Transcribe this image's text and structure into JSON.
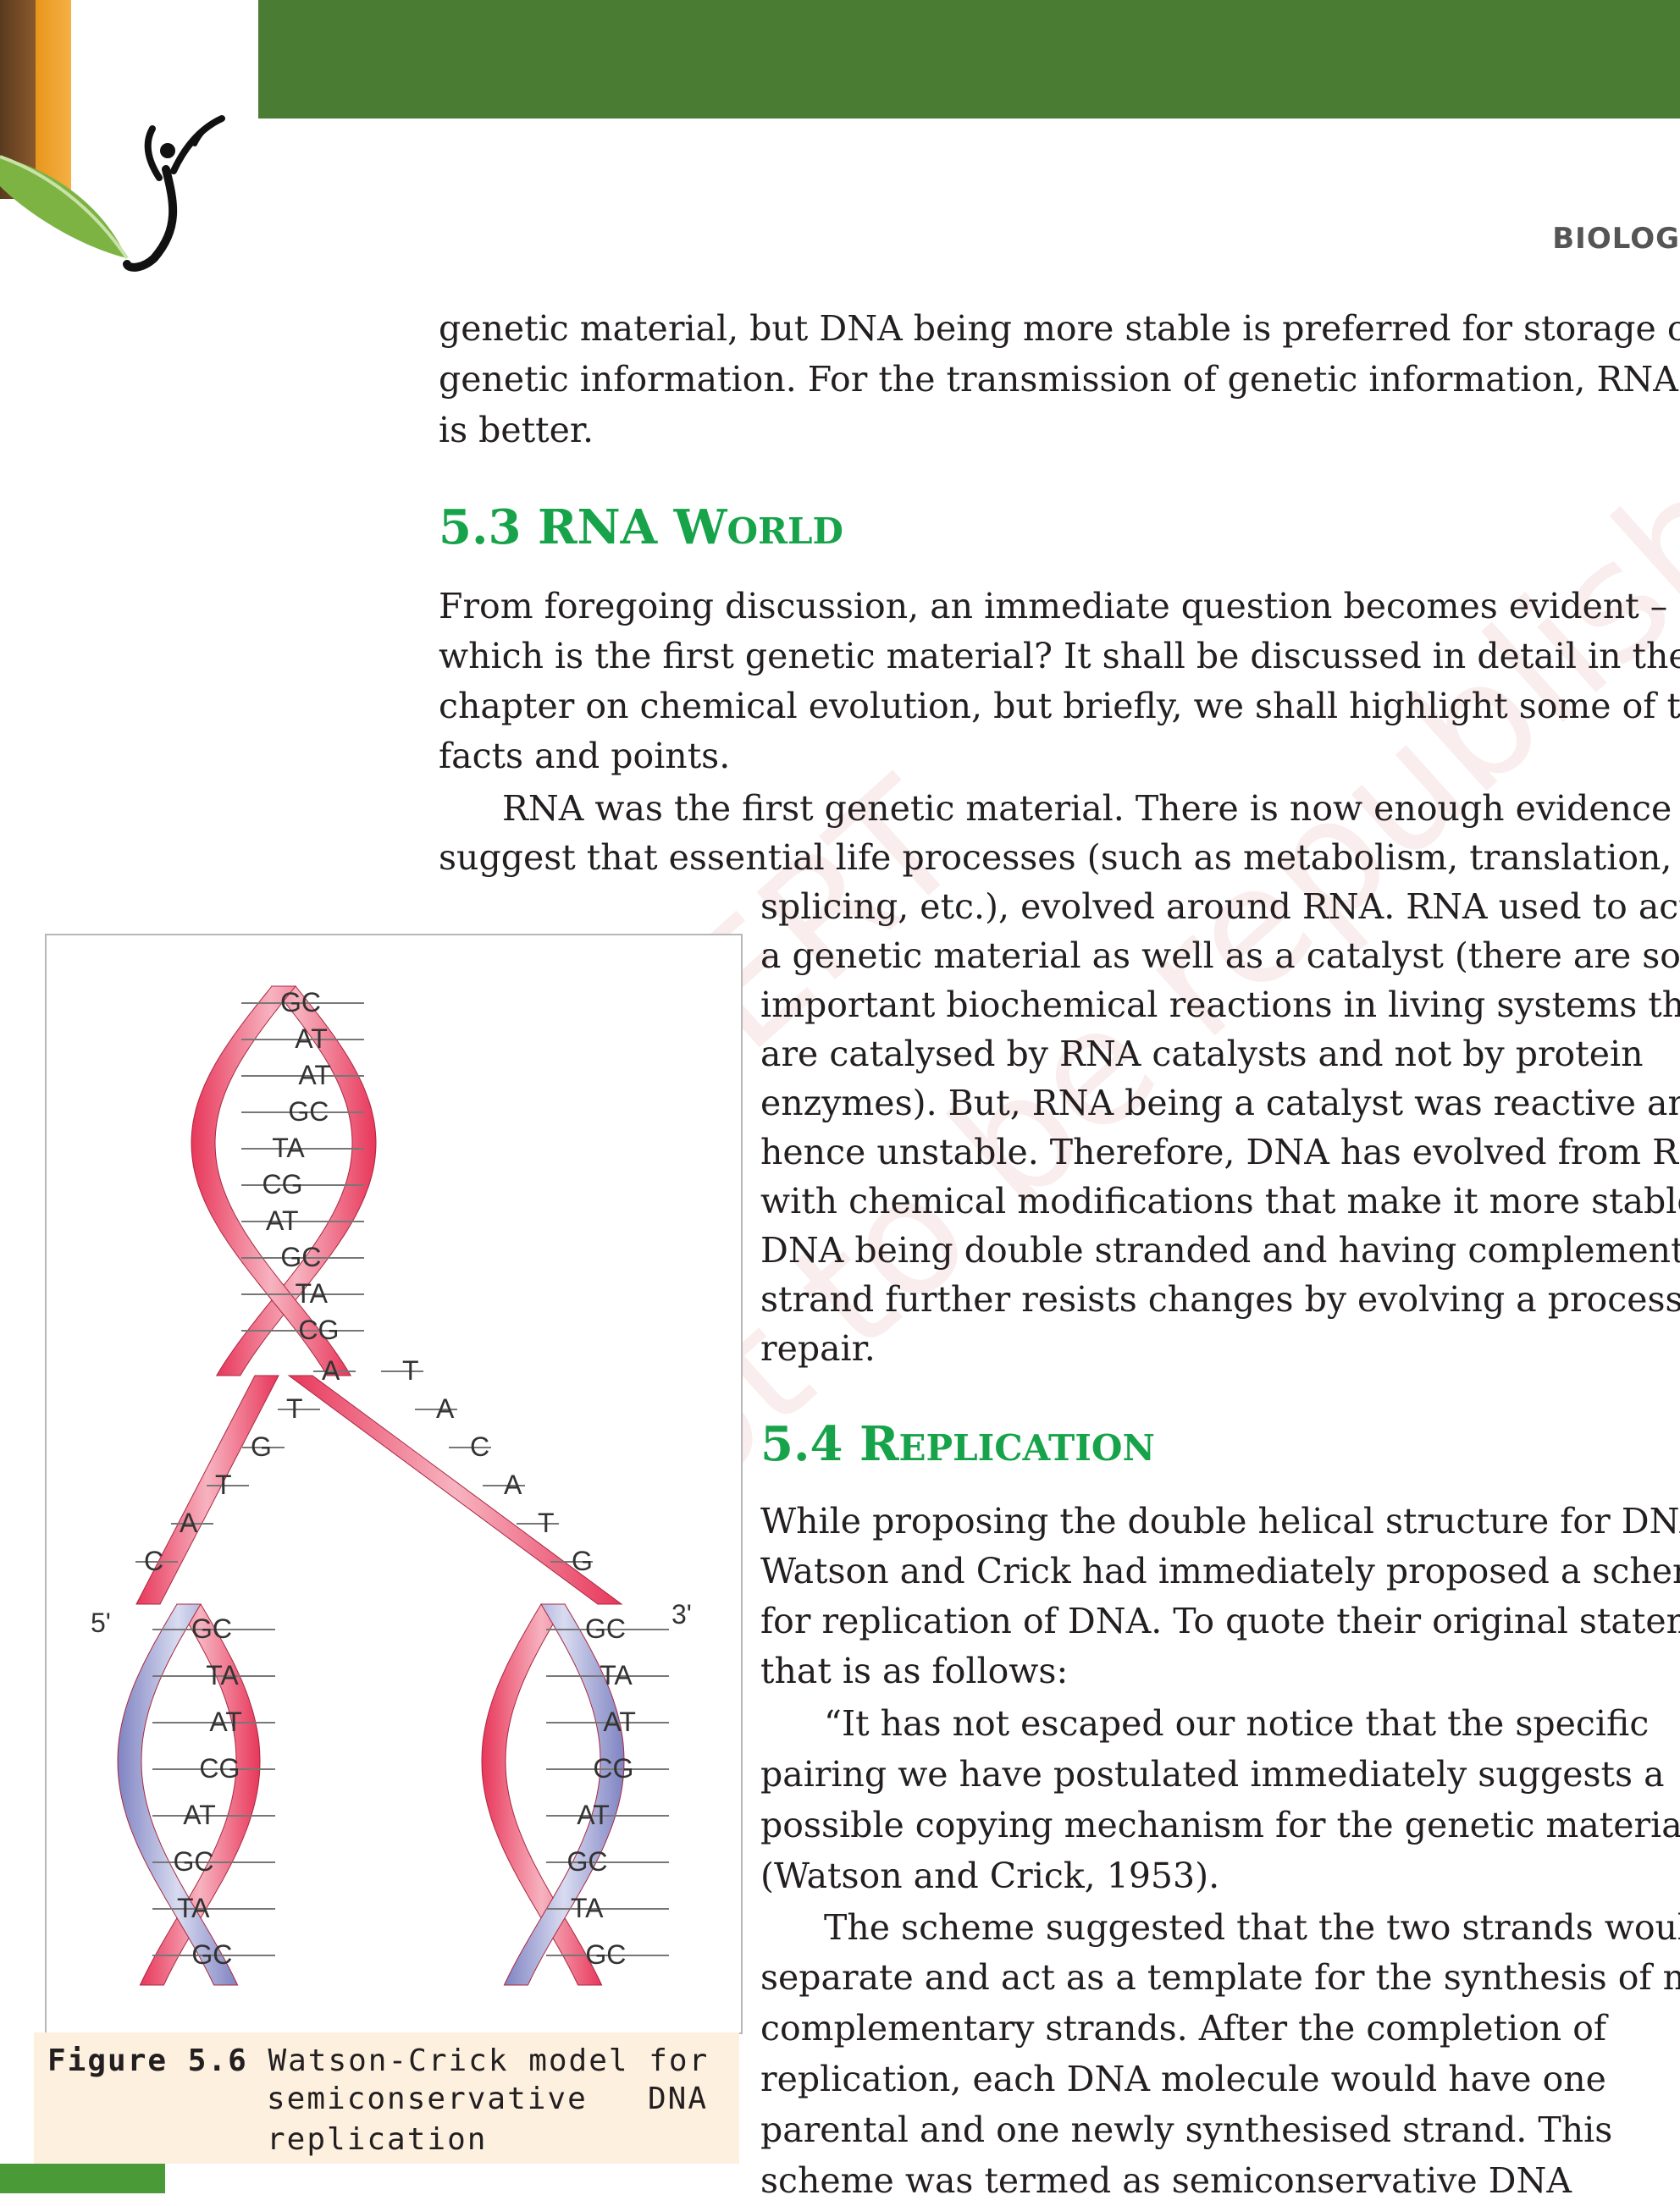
{
  "header": {
    "running_head": "BIOLOG"
  },
  "paragraphs_top": [
    "genetic material, but DNA being more stable is preferred for storage of",
    "genetic information. For the transmission of genetic information, RNA",
    "is better."
  ],
  "section_53": {
    "number": "5.3",
    "title_first": "RNA W",
    "title_rest": "ORLD"
  },
  "section_53_body": [
    "From foregoing discussion, an immediate question becomes evident –",
    "which is the first genetic material? It shall be discussed in detail in the",
    "chapter on chemical evolution, but briefly, we shall highlight some of the",
    "facts and points."
  ],
  "rna_para_full": [
    "RNA was the first genetic material.  There is now enough evidence to",
    "suggest that essential life processes (such as metabolism, translation,"
  ],
  "rna_para_narrow": [
    "splicing, etc.), evolved around RNA. RNA used to act as",
    "a genetic material as well as a catalyst (there are some",
    "important biochemical reactions in living systems that",
    "are catalysed by RNA catalysts and not by protein",
    "enzymes). But, RNA being a catalyst was reactive and",
    "hence unstable.  Therefore, DNA has evolved from RNA",
    "with chemical modifications that make it more stable.",
    "DNA being double stranded and having complementary",
    "strand further resists changes by evolving a process of",
    "repair."
  ],
  "section_54": {
    "number": "5.4",
    "title_first": "R",
    "title_rest": "EPLICATION"
  },
  "section_54_body": [
    "While proposing the double helical structure for DNA,",
    "Watson and Crick had immediately proposed a scheme",
    "for replication of DNA. To quote their original statement",
    "that is as follows:",
    "“It has not escaped our notice that the specific",
    "pairing we have postulated immediately suggests a",
    "possible copying mechanism for the genetic material”",
    "(Watson and Crick, 1953).",
    "The scheme suggested that the two strands would",
    "separate and act as a template for the synthesis of new",
    "complementary strands. After the completion of",
    "replication, each DNA molecule would have one",
    "parental and one newly synthesised strand. This",
    "scheme was termed as semiconservative DNA"
  ],
  "figure": {
    "label": "Figure 5.6",
    "caption_line1": "Watson-Crick model for",
    "caption_line2_a": "semiconservative",
    "caption_line2_b": "DNA",
    "caption_line3": "replication",
    "end_5": "5'",
    "end_3": "3'",
    "parent_pairs": [
      "GC",
      "AT",
      "AT",
      "GC",
      "TA",
      "CG",
      "AT",
      "GC",
      "TA",
      "CG"
    ],
    "left_unpaired": [
      "A",
      "T",
      "G",
      "T",
      "A",
      "C"
    ],
    "right_unpaired": [
      "T",
      "A",
      "C",
      "A",
      "T",
      "G"
    ],
    "left_daughter_pairs": [
      "GC",
      "TA",
      "AT",
      "CG",
      "AT",
      "GC",
      "TA",
      "GC"
    ],
    "right_daughter_pairs": [
      "GC",
      "TA",
      "AT",
      "CG",
      "AT",
      "GC",
      "TA",
      "GC"
    ],
    "colors": {
      "parental": "#e03a5a",
      "new": "#8a8fc8"
    }
  },
  "watermark": {
    "line1": "©NCERT",
    "line2": "not to be republished"
  }
}
